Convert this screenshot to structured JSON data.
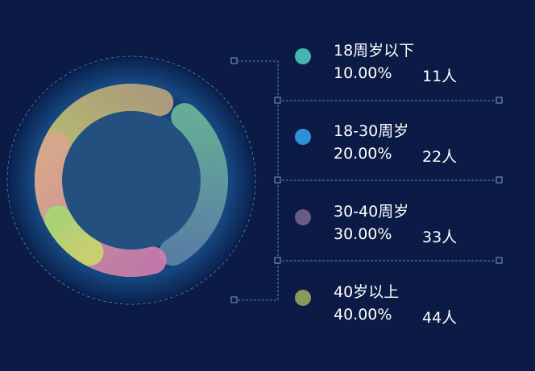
{
  "chart_data": {
    "type": "pie",
    "categories": [
      "18周岁以下",
      "18-30周岁",
      "30-40周岁",
      "40岁以上"
    ],
    "values": [
      11,
      22,
      33,
      44
    ],
    "percentages": [
      "10.00%",
      "20.00%",
      "30.00%",
      "40.00%"
    ],
    "counts": [
      "11人",
      "22人",
      "33人",
      "44人"
    ],
    "colors": [
      "#44b6b2",
      "#2e90d7",
      "#6b5a86",
      "#8a9a5c"
    ],
    "ring_colors": [
      [
        "#6db59a",
        "#5f84a8"
      ],
      [
        "#c7d36a",
        "#b8a27c"
      ],
      [
        "#cf7eac",
        "#d8a58c"
      ],
      [
        "#c9d66c",
        "#a6d774"
      ]
    ],
    "legend_position": "right"
  }
}
